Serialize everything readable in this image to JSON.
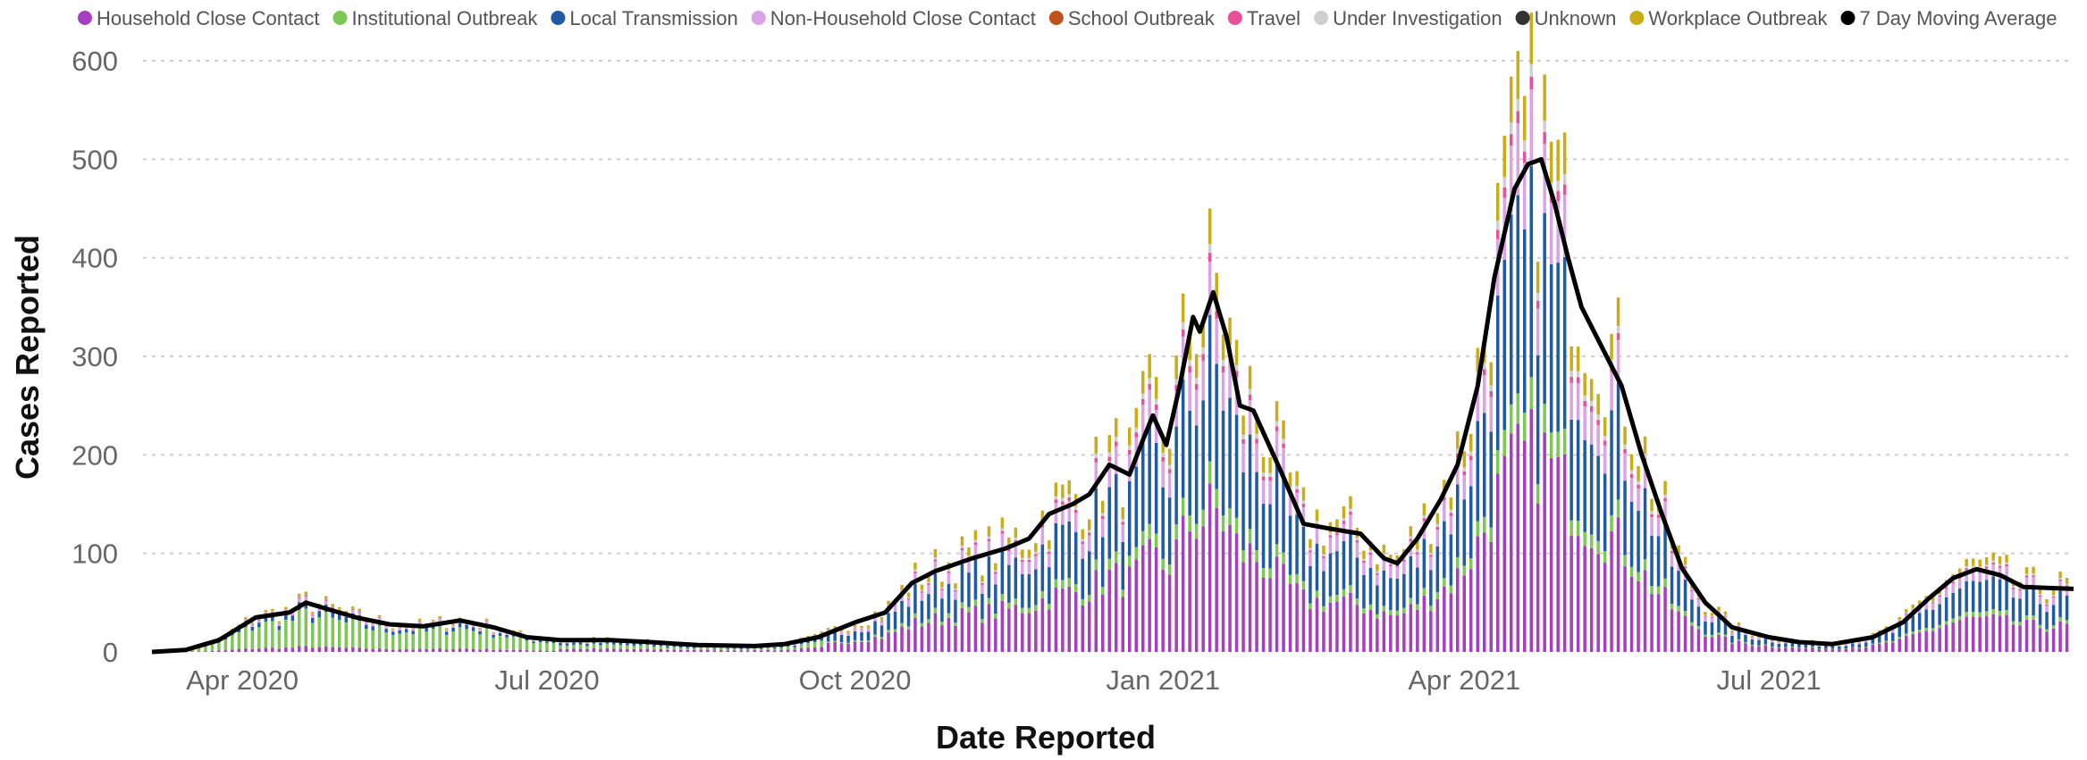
{
  "chart_data": {
    "type": "bar",
    "stacked": true,
    "title": "",
    "xlabel": "Date Reported",
    "ylabel": "Cases Reported",
    "ylim": [
      0,
      600
    ],
    "yticks": [
      0,
      100,
      200,
      300,
      400,
      500,
      600
    ],
    "xlim": [
      "2020-03-01",
      "2021-09-30"
    ],
    "xticks": [
      {
        "date": "2020-04-01",
        "label": "Apr 2020"
      },
      {
        "date": "2020-07-01",
        "label": "Jul 2020"
      },
      {
        "date": "2020-10-01",
        "label": "Oct 2020"
      },
      {
        "date": "2021-01-01",
        "label": "Jan 2021"
      },
      {
        "date": "2021-04-01",
        "label": "Apr 2021"
      },
      {
        "date": "2021-07-01",
        "label": "Jul 2021"
      }
    ],
    "grid": true,
    "legend_position": "top",
    "bar_interval_days": 2,
    "series": [
      {
        "name": "Household Close Contact",
        "color": "#a63ec0"
      },
      {
        "name": "Institutional Outbreak",
        "color": "#7dc855"
      },
      {
        "name": "Local Transmission",
        "color": "#1f5aa6"
      },
      {
        "name": "Non-Household Close Contact",
        "color": "#dba3e6"
      },
      {
        "name": "School Outbreak",
        "color": "#c0521f"
      },
      {
        "name": "Travel",
        "color": "#e9509a"
      },
      {
        "name": "Under Investigation",
        "color": "#cfcfcf"
      },
      {
        "name": "Unknown",
        "color": "#333333"
      },
      {
        "name": "Workplace Outbreak",
        "color": "#c9ac16"
      }
    ],
    "moving_average": {
      "name": "7 Day Moving Average",
      "color": "#000000",
      "points": [
        [
          "2020-03-05",
          0
        ],
        [
          "2020-03-15",
          2
        ],
        [
          "2020-03-25",
          12
        ],
        [
          "2020-04-05",
          35
        ],
        [
          "2020-04-15",
          40
        ],
        [
          "2020-04-20",
          50
        ],
        [
          "2020-04-25",
          45
        ],
        [
          "2020-05-05",
          35
        ],
        [
          "2020-05-15",
          28
        ],
        [
          "2020-05-25",
          26
        ],
        [
          "2020-06-05",
          32
        ],
        [
          "2020-06-15",
          25
        ],
        [
          "2020-06-25",
          15
        ],
        [
          "2020-07-05",
          12
        ],
        [
          "2020-07-20",
          12
        ],
        [
          "2020-08-01",
          10
        ],
        [
          "2020-08-15",
          7
        ],
        [
          "2020-09-01",
          6
        ],
        [
          "2020-09-10",
          8
        ],
        [
          "2020-09-20",
          15
        ],
        [
          "2020-10-01",
          30
        ],
        [
          "2020-10-10",
          40
        ],
        [
          "2020-10-18",
          70
        ],
        [
          "2020-10-25",
          82
        ],
        [
          "2020-11-05",
          95
        ],
        [
          "2020-11-15",
          105
        ],
        [
          "2020-11-22",
          115
        ],
        [
          "2020-11-28",
          140
        ],
        [
          "2020-12-05",
          150
        ],
        [
          "2020-12-10",
          160
        ],
        [
          "2020-12-16",
          190
        ],
        [
          "2020-12-22",
          180
        ],
        [
          "2020-12-26",
          215
        ],
        [
          "2020-12-29",
          240
        ],
        [
          "2021-01-02",
          210
        ],
        [
          "2021-01-06",
          270
        ],
        [
          "2021-01-10",
          340
        ],
        [
          "2021-01-12",
          325
        ],
        [
          "2021-01-16",
          365
        ],
        [
          "2021-01-20",
          320
        ],
        [
          "2021-01-24",
          250
        ],
        [
          "2021-01-28",
          245
        ],
        [
          "2021-02-05",
          185
        ],
        [
          "2021-02-12",
          130
        ],
        [
          "2021-02-20",
          125
        ],
        [
          "2021-03-01",
          120
        ],
        [
          "2021-03-08",
          95
        ],
        [
          "2021-03-12",
          90
        ],
        [
          "2021-03-18",
          115
        ],
        [
          "2021-03-25",
          155
        ],
        [
          "2021-03-30",
          190
        ],
        [
          "2021-04-05",
          270
        ],
        [
          "2021-04-10",
          380
        ],
        [
          "2021-04-16",
          470
        ],
        [
          "2021-04-20",
          495
        ],
        [
          "2021-04-24",
          500
        ],
        [
          "2021-04-28",
          455
        ],
        [
          "2021-05-02",
          400
        ],
        [
          "2021-05-06",
          350
        ],
        [
          "2021-05-12",
          310
        ],
        [
          "2021-05-18",
          270
        ],
        [
          "2021-05-24",
          200
        ],
        [
          "2021-05-30",
          140
        ],
        [
          "2021-06-05",
          85
        ],
        [
          "2021-06-12",
          50
        ],
        [
          "2021-06-20",
          25
        ],
        [
          "2021-07-01",
          15
        ],
        [
          "2021-07-10",
          10
        ],
        [
          "2021-07-20",
          8
        ],
        [
          "2021-08-01",
          15
        ],
        [
          "2021-08-10",
          30
        ],
        [
          "2021-08-18",
          55
        ],
        [
          "2021-08-25",
          75
        ],
        [
          "2021-09-01",
          84
        ],
        [
          "2021-09-08",
          78
        ],
        [
          "2021-09-15",
          66
        ],
        [
          "2021-09-30",
          64
        ]
      ]
    }
  }
}
